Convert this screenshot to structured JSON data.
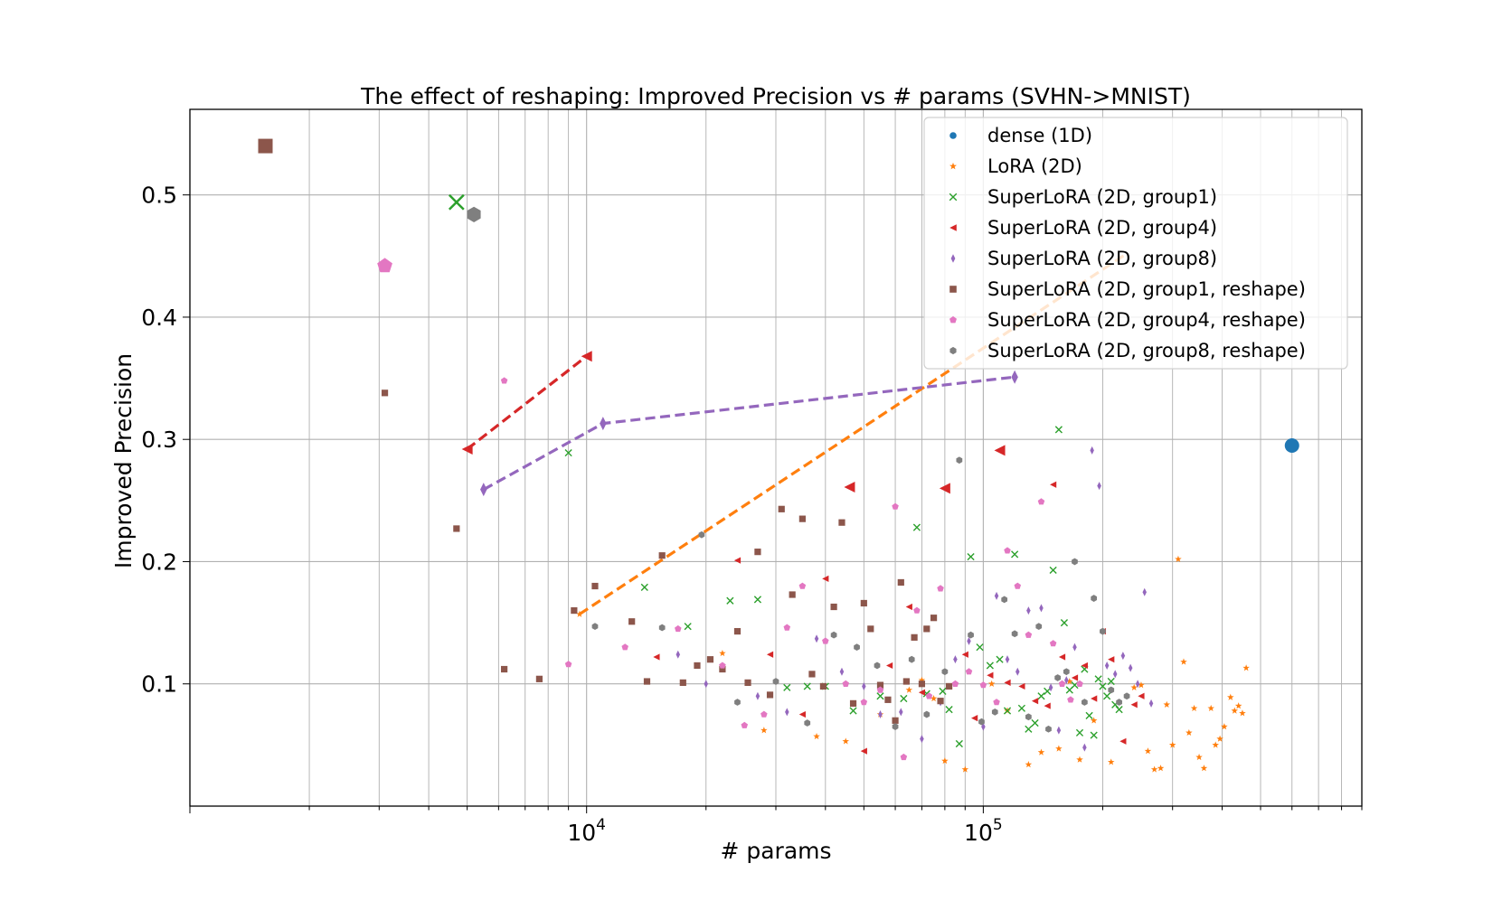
{
  "chart_data": {
    "type": "scatter",
    "title": "The effect of reshaping: Improved Precision vs # params (SVHN->MNIST)",
    "xlabel": "# params",
    "ylabel": "Improved Precision",
    "xscale": "log",
    "xlim": [
      1000,
      900000
    ],
    "ylim": [
      0,
      0.57
    ],
    "grid": true,
    "legend_position": "top-right",
    "x_tick_labels": [
      {
        "value": 10000,
        "base": "10",
        "exp": "4"
      },
      {
        "value": 100000,
        "base": "10",
        "exp": "5"
      }
    ],
    "y_ticks": [
      0.1,
      0.2,
      0.3,
      0.4,
      0.5
    ],
    "y_tick_labels": [
      "0.1",
      "0.2",
      "0.3",
      "0.4",
      "0.5"
    ],
    "series": [
      {
        "name": "dense (1D)",
        "color": "#1f77b4",
        "marker": "circle",
        "points": [
          [
            600000,
            0.295
          ]
        ]
      },
      {
        "name": "LoRA (2D)",
        "color": "#ff7f0e",
        "marker": "star",
        "points": [
          [
            9600,
            0.157
          ],
          [
            22000,
            0.125
          ],
          [
            28000,
            0.062
          ],
          [
            38000,
            0.057
          ],
          [
            45000,
            0.053
          ],
          [
            55000,
            0.075
          ],
          [
            65000,
            0.095
          ],
          [
            70000,
            0.103
          ],
          [
            75000,
            0.088
          ],
          [
            80000,
            0.037
          ],
          [
            90000,
            0.03
          ],
          [
            105000,
            0.1
          ],
          [
            115000,
            0.078
          ],
          [
            130000,
            0.034
          ],
          [
            140000,
            0.044
          ],
          [
            155000,
            0.047
          ],
          [
            165000,
            0.102
          ],
          [
            175000,
            0.038
          ],
          [
            190000,
            0.07
          ],
          [
            210000,
            0.036
          ],
          [
            240000,
            0.097
          ],
          [
            250000,
            0.099
          ],
          [
            260000,
            0.045
          ],
          [
            270000,
            0.03
          ],
          [
            280000,
            0.031
          ],
          [
            290000,
            0.083
          ],
          [
            300000,
            0.05
          ],
          [
            310000,
            0.202
          ],
          [
            320000,
            0.118
          ],
          [
            330000,
            0.06
          ],
          [
            340000,
            0.08
          ],
          [
            350000,
            0.04
          ],
          [
            360000,
            0.031
          ],
          [
            375000,
            0.08
          ],
          [
            385000,
            0.05
          ],
          [
            395000,
            0.055
          ],
          [
            405000,
            0.065
          ],
          [
            420000,
            0.089
          ],
          [
            430000,
            0.078
          ],
          [
            440000,
            0.082
          ],
          [
            450000,
            0.076
          ],
          [
            460000,
            0.113
          ]
        ]
      },
      {
        "name": "SuperLoRA (2D, group1)",
        "color": "#2ca02c",
        "marker": "x",
        "points": [
          [
            4700,
            0.494
          ],
          [
            9000,
            0.289
          ],
          [
            14000,
            0.179
          ],
          [
            18000,
            0.147
          ],
          [
            23000,
            0.168
          ],
          [
            27000,
            0.169
          ],
          [
            32000,
            0.097
          ],
          [
            36000,
            0.098
          ],
          [
            40000,
            0.098
          ],
          [
            47000,
            0.078
          ],
          [
            55000,
            0.09
          ],
          [
            63000,
            0.088
          ],
          [
            68000,
            0.228
          ],
          [
            72000,
            0.092
          ],
          [
            79000,
            0.094
          ],
          [
            82000,
            0.079
          ],
          [
            87000,
            0.051
          ],
          [
            93000,
            0.204
          ],
          [
            98000,
            0.13
          ],
          [
            104000,
            0.115
          ],
          [
            110000,
            0.12
          ],
          [
            115000,
            0.078
          ],
          [
            120000,
            0.206
          ],
          [
            125000,
            0.08
          ],
          [
            130000,
            0.063
          ],
          [
            135000,
            0.068
          ],
          [
            140000,
            0.09
          ],
          [
            145000,
            0.094
          ],
          [
            150000,
            0.193
          ],
          [
            155000,
            0.308
          ],
          [
            160000,
            0.15
          ],
          [
            165000,
            0.095
          ],
          [
            170000,
            0.099
          ],
          [
            175000,
            0.06
          ],
          [
            180000,
            0.112
          ],
          [
            185000,
            0.074
          ],
          [
            190000,
            0.058
          ],
          [
            195000,
            0.104
          ],
          [
            200000,
            0.098
          ],
          [
            205000,
            0.09
          ],
          [
            210000,
            0.102
          ],
          [
            215000,
            0.083
          ],
          [
            220000,
            0.079
          ]
        ]
      },
      {
        "name": "SuperLoRA (2D, group4)",
        "color": "#d62728",
        "marker": "triangle-left",
        "points": [
          [
            5000,
            0.292
          ],
          [
            10000,
            0.368
          ],
          [
            15000,
            0.122
          ],
          [
            24000,
            0.201
          ],
          [
            29000,
            0.124
          ],
          [
            35000,
            0.075
          ],
          [
            40000,
            0.186
          ],
          [
            46000,
            0.261
          ],
          [
            50000,
            0.045
          ],
          [
            58000,
            0.115
          ],
          [
            65000,
            0.163
          ],
          [
            70000,
            0.093
          ],
          [
            80000,
            0.26
          ],
          [
            90000,
            0.124
          ],
          [
            95000,
            0.072
          ],
          [
            104000,
            0.107
          ],
          [
            110000,
            0.291
          ],
          [
            115000,
            0.101
          ],
          [
            125000,
            0.098
          ],
          [
            135000,
            0.086
          ],
          [
            145000,
            0.082
          ],
          [
            150000,
            0.263
          ],
          [
            158000,
            0.122
          ],
          [
            170000,
            0.105
          ],
          [
            180000,
            0.115
          ],
          [
            190000,
            0.088
          ],
          [
            200000,
            0.143
          ],
          [
            210000,
            0.12
          ],
          [
            225000,
            0.053
          ],
          [
            240000,
            0.083
          ],
          [
            250000,
            0.09
          ]
        ]
      },
      {
        "name": "SuperLoRA (2D, group8)",
        "color": "#9467bd",
        "marker": "thin-diamond",
        "points": [
          [
            5500,
            0.259
          ],
          [
            11000,
            0.313
          ],
          [
            120000,
            0.351
          ],
          [
            17000,
            0.124
          ],
          [
            20000,
            0.1
          ],
          [
            27000,
            0.09
          ],
          [
            32000,
            0.077
          ],
          [
            38000,
            0.137
          ],
          [
            44000,
            0.11
          ],
          [
            50000,
            0.098
          ],
          [
            55000,
            0.075
          ],
          [
            62000,
            0.077
          ],
          [
            70000,
            0.055
          ],
          [
            78000,
            0.085
          ],
          [
            85000,
            0.12
          ],
          [
            92000,
            0.135
          ],
          [
            100000,
            0.065
          ],
          [
            108000,
            0.172
          ],
          [
            115000,
            0.12
          ],
          [
            122000,
            0.11
          ],
          [
            130000,
            0.16
          ],
          [
            140000,
            0.162
          ],
          [
            148000,
            0.097
          ],
          [
            155000,
            0.062
          ],
          [
            162000,
            0.103
          ],
          [
            170000,
            0.13
          ],
          [
            180000,
            0.048
          ],
          [
            188000,
            0.291
          ],
          [
            196000,
            0.262
          ],
          [
            205000,
            0.115
          ],
          [
            215000,
            0.108
          ],
          [
            225000,
            0.123
          ],
          [
            235000,
            0.113
          ],
          [
            245000,
            0.1
          ],
          [
            255000,
            0.175
          ],
          [
            265000,
            0.084
          ]
        ]
      },
      {
        "name": "SuperLoRA (2D, group1, reshape)",
        "color": "#8c564b",
        "marker": "square",
        "points": [
          [
            1550,
            0.54
          ],
          [
            3100,
            0.338
          ],
          [
            4700,
            0.227
          ],
          [
            6200,
            0.112
          ],
          [
            7600,
            0.104
          ],
          [
            9300,
            0.16
          ],
          [
            10500,
            0.18
          ],
          [
            13000,
            0.151
          ],
          [
            14200,
            0.102
          ],
          [
            15500,
            0.205
          ],
          [
            17500,
            0.101
          ],
          [
            19000,
            0.115
          ],
          [
            20500,
            0.12
          ],
          [
            22000,
            0.112
          ],
          [
            24000,
            0.143
          ],
          [
            25500,
            0.101
          ],
          [
            27000,
            0.208
          ],
          [
            29000,
            0.091
          ],
          [
            31000,
            0.243
          ],
          [
            33000,
            0.173
          ],
          [
            35000,
            0.235
          ],
          [
            37000,
            0.108
          ],
          [
            39500,
            0.098
          ],
          [
            42000,
            0.163
          ],
          [
            44000,
            0.232
          ],
          [
            47000,
            0.084
          ],
          [
            50000,
            0.166
          ],
          [
            52000,
            0.145
          ],
          [
            55000,
            0.099
          ],
          [
            57500,
            0.087
          ],
          [
            60000,
            0.07
          ],
          [
            62000,
            0.183
          ],
          [
            64000,
            0.102
          ],
          [
            67000,
            0.138
          ],
          [
            70000,
            0.1
          ],
          [
            72000,
            0.145
          ],
          [
            75000,
            0.154
          ],
          [
            78000,
            0.086
          ],
          [
            82000,
            0.098
          ]
        ]
      },
      {
        "name": "SuperLoRA (2D, group4, reshape)",
        "color": "#e377c2",
        "marker": "pentagon",
        "points": [
          [
            3100,
            0.442
          ],
          [
            6200,
            0.348
          ],
          [
            9000,
            0.116
          ],
          [
            12500,
            0.13
          ],
          [
            17000,
            0.145
          ],
          [
            22000,
            0.115
          ],
          [
            25000,
            0.066
          ],
          [
            28000,
            0.075
          ],
          [
            32000,
            0.146
          ],
          [
            35000,
            0.18
          ],
          [
            40000,
            0.135
          ],
          [
            45000,
            0.1
          ],
          [
            50000,
            0.085
          ],
          [
            55000,
            0.095
          ],
          [
            60000,
            0.245
          ],
          [
            63000,
            0.04
          ],
          [
            68000,
            0.16
          ],
          [
            73000,
            0.09
          ],
          [
            78000,
            0.178
          ],
          [
            85000,
            0.1
          ],
          [
            92000,
            0.11
          ],
          [
            100000,
            0.099
          ],
          [
            108000,
            0.085
          ],
          [
            115000,
            0.209
          ],
          [
            122000,
            0.18
          ],
          [
            130000,
            0.14
          ],
          [
            140000,
            0.249
          ],
          [
            150000,
            0.133
          ],
          [
            158000,
            0.1
          ],
          [
            166000,
            0.087
          ],
          [
            175000,
            0.1
          ]
        ]
      },
      {
        "name": "SuperLoRA (2D, group8, reshape)",
        "color": "#7f7f7f",
        "marker": "hexagon",
        "points": [
          [
            5200,
            0.484
          ],
          [
            10500,
            0.147
          ],
          [
            15500,
            0.146
          ],
          [
            19500,
            0.222
          ],
          [
            24000,
            0.085
          ],
          [
            30000,
            0.102
          ],
          [
            36000,
            0.068
          ],
          [
            42000,
            0.14
          ],
          [
            48000,
            0.13
          ],
          [
            54000,
            0.115
          ],
          [
            60000,
            0.065
          ],
          [
            66000,
            0.12
          ],
          [
            72000,
            0.075
          ],
          [
            80000,
            0.11
          ],
          [
            87000,
            0.283
          ],
          [
            93000,
            0.14
          ],
          [
            99000,
            0.069
          ],
          [
            107000,
            0.077
          ],
          [
            113000,
            0.169
          ],
          [
            120000,
            0.141
          ],
          [
            130000,
            0.073
          ],
          [
            138000,
            0.147
          ],
          [
            146000,
            0.063
          ],
          [
            154000,
            0.105
          ],
          [
            162000,
            0.11
          ],
          [
            170000,
            0.2
          ],
          [
            180000,
            0.085
          ],
          [
            190000,
            0.17
          ],
          [
            200000,
            0.143
          ],
          [
            210000,
            0.095
          ],
          [
            220000,
            0.085
          ],
          [
            230000,
            0.09
          ]
        ]
      }
    ],
    "trend_lines": [
      {
        "color": "#ff7f0e",
        "points": [
          [
            9600,
            0.157
          ],
          [
            230000,
            0.452
          ]
        ]
      },
      {
        "color": "#d62728",
        "points": [
          [
            5000,
            0.292
          ],
          [
            10000,
            0.368
          ]
        ]
      },
      {
        "color": "#9467bd",
        "points": [
          [
            5500,
            0.259
          ],
          [
            11000,
            0.313
          ],
          [
            120000,
            0.351
          ]
        ]
      }
    ]
  }
}
